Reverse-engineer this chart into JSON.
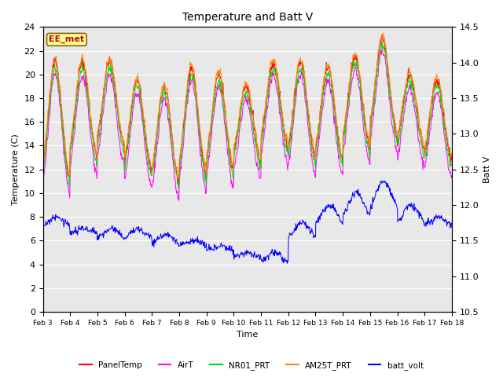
{
  "title": "Temperature and Batt V",
  "xlabel": "Time",
  "ylabel_left": "Temperature (C)",
  "ylabel_right": "Batt V",
  "ylim_left": [
    0,
    24
  ],
  "ylim_right": [
    10.5,
    14.5
  ],
  "yticks_left": [
    0,
    2,
    4,
    6,
    8,
    10,
    12,
    14,
    16,
    18,
    20,
    22,
    24
  ],
  "yticks_right": [
    10.5,
    11.0,
    11.5,
    12.0,
    12.5,
    13.0,
    13.5,
    14.0,
    14.5
  ],
  "xtick_labels": [
    "Feb 3",
    "Feb 4",
    "Feb 5",
    "Feb 6",
    "Feb 7",
    "Feb 8",
    "Feb 9",
    "Feb 10",
    "Feb 11",
    "Feb 12",
    "Feb 13",
    "Feb 14",
    "Feb 15",
    "Feb 16",
    "Feb 17",
    "Feb 18"
  ],
  "watermark": "EE_met",
  "legend_entries": [
    "PanelTemp",
    "AirT",
    "NR01_PRT",
    "AM25T_PRT",
    "batt_volt"
  ],
  "line_colors": [
    "#ff0000",
    "#ff00ff",
    "#00dd00",
    "#ff8800",
    "#0000ff"
  ],
  "background_color": "#ffffff",
  "plot_bg_color": "#e8e8e8",
  "n_points": 900
}
